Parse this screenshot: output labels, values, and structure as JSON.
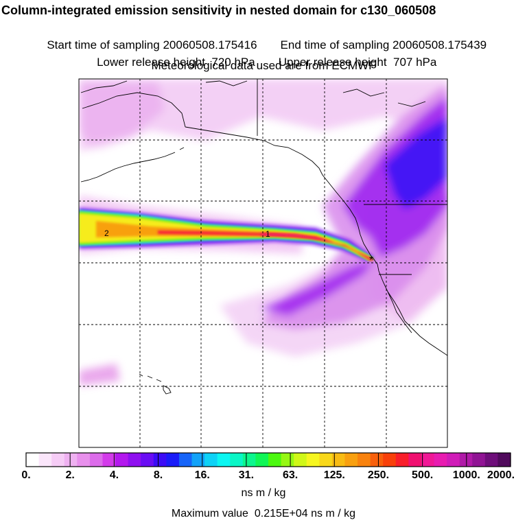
{
  "chart_data": {
    "type": "heatmap",
    "title": "Column-integrated emission sensitivity in nested domain for c130_060508",
    "sampling": {
      "start_label": "Start time of sampling",
      "start_value": "20060508.175416",
      "end_label": "End time of sampling",
      "end_value": "20060508.175439"
    },
    "release": {
      "lower_label": "Lower release height",
      "lower_value": "720 hPa",
      "upper_label": "Upper release height",
      "upper_value": "707 hPa"
    },
    "met_note": "Meteorological data used are from ECMWF",
    "colorbar": {
      "tick_labels": [
        "0.",
        "2.",
        "4.",
        "8.",
        "16.",
        "31.",
        "63.",
        "125.",
        "250.",
        "500.",
        "1000.",
        "2000."
      ],
      "colors": [
        "#ffffff",
        "#fbe6fb",
        "#f6ccf6",
        "#efb1f1",
        "#e890ec",
        "#dc6cea",
        "#d33bea",
        "#b318ee",
        "#8f10f0",
        "#6a0df4",
        "#3c0cf6",
        "#1a1cf8",
        "#1664f8",
        "#12a2f8",
        "#0ed2f6",
        "#0cf6f2",
        "#0af6c6",
        "#0cf68e",
        "#10f656",
        "#4cf810",
        "#96f814",
        "#d0f818",
        "#f6f620",
        "#f8d81a",
        "#f8bc14",
        "#f8a010",
        "#f8820e",
        "#f8600c",
        "#f8400a",
        "#f81e2a",
        "#f01070",
        "#f01896",
        "#e81cb0",
        "#d01cb8",
        "#b01aa8",
        "#901494",
        "#6e0e7a",
        "#500a5c"
      ],
      "units": "ns m / kg"
    },
    "plume": {
      "source_marker": "*",
      "segment_labels": [
        "2",
        "1"
      ]
    },
    "max_value": {
      "label": "Maximum value",
      "value": "0.215E+04",
      "units": "ns m / kg"
    }
  }
}
